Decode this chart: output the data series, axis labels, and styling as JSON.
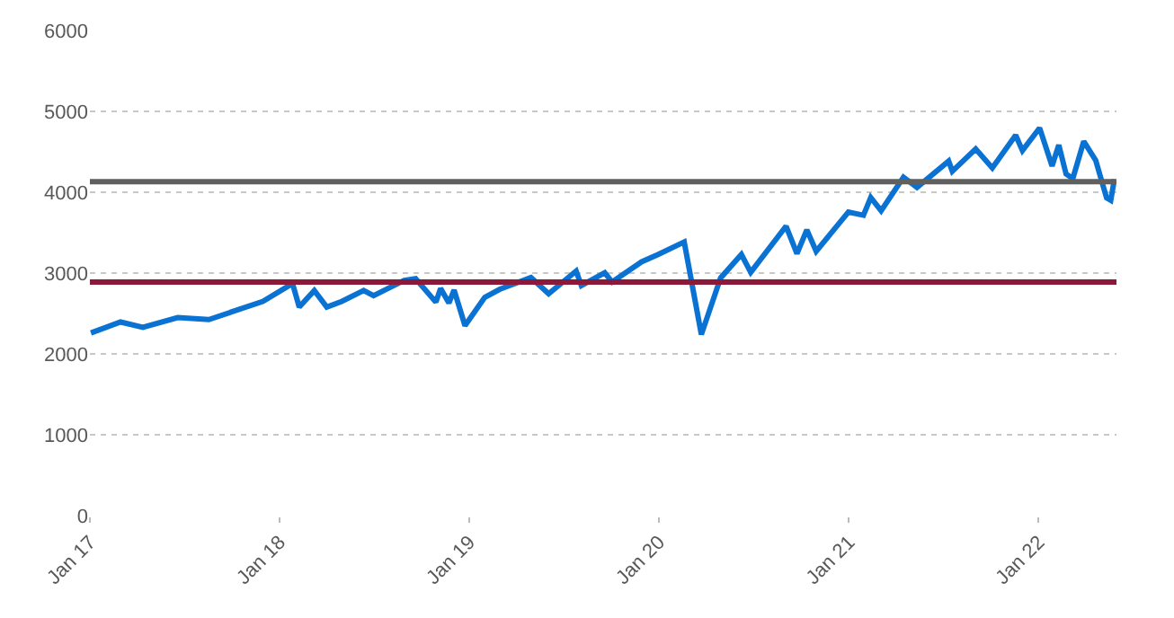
{
  "chart_data": {
    "type": "line",
    "x": [
      "2017-01-03",
      "2017-03-01",
      "2017-04-13",
      "2017-06-19",
      "2017-08-18",
      "2017-10-01",
      "2017-11-30",
      "2018-01-26",
      "2018-02-08",
      "2018-03-09",
      "2018-04-02",
      "2018-05-01",
      "2018-06-12",
      "2018-07-01",
      "2018-08-29",
      "2018-09-20",
      "2018-10-29",
      "2018-11-07",
      "2018-11-23",
      "2018-12-03",
      "2018-12-24",
      "2019-01-31",
      "2019-03-01",
      "2019-04-30",
      "2019-06-03",
      "2019-07-26",
      "2019-08-05",
      "2019-09-19",
      "2019-10-03",
      "2019-11-29",
      "2019-12-31",
      "2020-02-19",
      "2020-03-23",
      "2020-04-29",
      "2020-06-08",
      "2020-06-26",
      "2020-09-02",
      "2020-09-23",
      "2020-10-12",
      "2020-10-30",
      "2020-12-31",
      "2021-01-29",
      "2021-02-12",
      "2021-03-04",
      "2021-04-16",
      "2021-05-12",
      "2021-07-12",
      "2021-07-19",
      "2021-09-02",
      "2021-10-04",
      "2021-11-18",
      "2021-12-01",
      "2022-01-03",
      "2022-01-27",
      "2022-02-09",
      "2022-02-23",
      "2022-03-08",
      "2022-03-29",
      "2022-04-21",
      "2022-05-12",
      "2022-05-20",
      "2022-05-27"
    ],
    "series": [
      {
        "color": "#0a72d2",
        "values": [
          2260,
          2395,
          2330,
          2450,
          2425,
          2520,
          2650,
          2870,
          2580,
          2785,
          2580,
          2650,
          2785,
          2720,
          2910,
          2930,
          2640,
          2810,
          2630,
          2790,
          2350,
          2700,
          2800,
          2945,
          2745,
          3025,
          2845,
          3005,
          2890,
          3140,
          3230,
          3385,
          2240,
          2940,
          3230,
          3010,
          3580,
          3240,
          3535,
          3270,
          3755,
          3715,
          3935,
          3770,
          4185,
          4060,
          4385,
          4260,
          4535,
          4300,
          4705,
          4515,
          4795,
          4325,
          4585,
          4225,
          4170,
          4630,
          4395,
          3930,
          3900,
          4160
        ]
      }
    ],
    "xlim": [
      "2017-01-01",
      "2022-05-31"
    ],
    "xticks": [
      {
        "value": "2017-01-01",
        "label": "Jan 17"
      },
      {
        "value": "2018-01-01",
        "label": "Jan 18"
      },
      {
        "value": "2019-01-01",
        "label": "Jan 19"
      },
      {
        "value": "2020-01-01",
        "label": "Jan 20"
      },
      {
        "value": "2021-01-01",
        "label": "Jan 21"
      },
      {
        "value": "2022-01-01",
        "label": "Jan 22"
      }
    ],
    "ylim": [
      0,
      6000
    ],
    "yticks": [
      0,
      1000,
      2000,
      3000,
      4000,
      5000,
      6000
    ],
    "grid": "y",
    "marker": "none",
    "line_style": "solid",
    "ref_lines": [
      {
        "axis": "y",
        "value": 4130,
        "color": "#606060"
      },
      {
        "axis": "y",
        "value": 2890,
        "color": "#8b1a3a"
      }
    ]
  }
}
